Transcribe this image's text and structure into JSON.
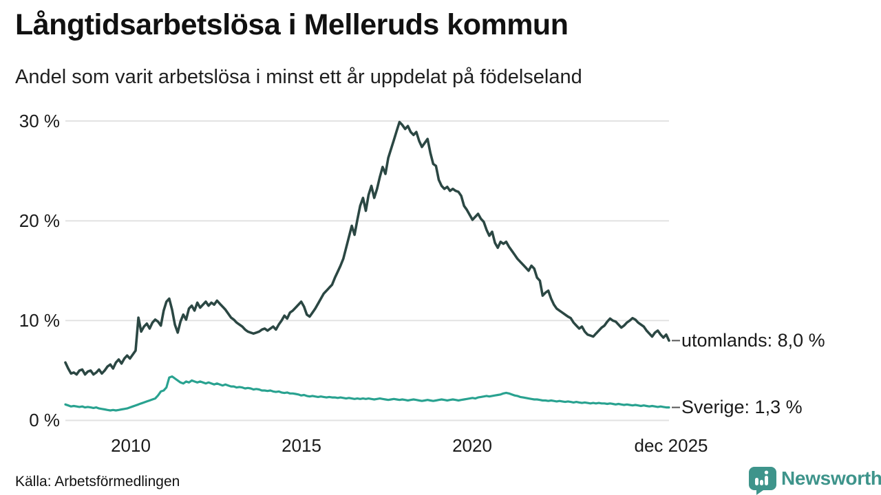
{
  "header": {
    "title": "Långtidsarbetslösa i Melleruds kommun",
    "subtitle": "Andel som varit arbetslösa i minst ett år uppdelat på födelseland"
  },
  "footer": {
    "source": "Källa: Arbetsförmedlingen",
    "brand_name": "Newsworthy",
    "brand_color": "#3e948b",
    "brand_icon": "bar-chart-pin-icon"
  },
  "colors": {
    "gridline": "#e2e2e2",
    "connector": "#555555",
    "text": "#1a1a1a"
  },
  "chart_data": {
    "type": "line",
    "x_unit": "month",
    "x_start": "jan 2008",
    "x_end": "dec 2025",
    "x_tick_labels": [
      "2010",
      "2015",
      "2020",
      "dec 2025"
    ],
    "y_tick_labels": [
      "0 %",
      "10 %",
      "20 %",
      "30 %"
    ],
    "y_ticks": [
      0,
      10,
      20,
      30
    ],
    "ylim": [
      0,
      30
    ],
    "grid": "horizontal",
    "legend_position": "right-end-labels",
    "series": [
      {
        "name": "utomlands",
        "label": "utomlands: 8,0 %",
        "last_value": "8,0 %",
        "color": "#2b4743",
        "stroke_width": 3.6,
        "values": [
          5.8,
          5.2,
          4.7,
          4.8,
          4.6,
          5.0,
          5.1,
          4.6,
          4.9,
          5.0,
          4.6,
          4.8,
          5.1,
          4.7,
          5.0,
          5.4,
          5.6,
          5.2,
          5.8,
          6.1,
          5.7,
          6.2,
          6.5,
          6.2,
          6.6,
          7.0,
          10.3,
          8.9,
          9.4,
          9.7,
          9.2,
          9.8,
          10.1,
          9.9,
          9.5,
          11.0,
          11.9,
          12.2,
          11.1,
          9.6,
          8.8,
          9.9,
          10.6,
          10.1,
          11.2,
          11.5,
          11.0,
          11.8,
          11.3,
          11.6,
          11.9,
          11.5,
          11.8,
          11.6,
          12.0,
          11.7,
          11.4,
          11.1,
          10.7,
          10.3,
          10.1,
          9.8,
          9.6,
          9.4,
          9.1,
          8.9,
          8.8,
          8.7,
          8.8,
          8.9,
          9.1,
          9.2,
          9.0,
          9.2,
          9.4,
          9.1,
          9.6,
          10.0,
          10.5,
          10.2,
          10.8,
          11.0,
          11.3,
          11.6,
          11.9,
          11.4,
          10.6,
          10.4,
          10.8,
          11.2,
          11.7,
          12.2,
          12.7,
          13.0,
          13.3,
          13.6,
          14.3,
          14.9,
          15.5,
          16.2,
          17.3,
          18.4,
          19.5,
          18.6,
          20.1,
          21.5,
          22.3,
          21.0,
          22.6,
          23.5,
          22.3,
          23.2,
          24.4,
          25.4,
          24.7,
          26.3,
          27.2,
          28.1,
          29.0,
          29.9,
          29.6,
          29.2,
          29.5,
          28.9,
          28.6,
          28.9,
          28.0,
          27.4,
          27.8,
          28.2,
          26.8,
          25.7,
          25.5,
          24.1,
          23.5,
          23.2,
          23.4,
          23.0,
          23.2,
          23.0,
          22.9,
          22.5,
          21.5,
          21.1,
          20.6,
          20.1,
          20.4,
          20.7,
          20.2,
          19.9,
          19.1,
          18.5,
          18.9,
          17.8,
          17.3,
          17.9,
          17.7,
          17.9,
          17.4,
          17.0,
          16.6,
          16.2,
          15.9,
          15.6,
          15.3,
          15.0,
          15.5,
          15.2,
          14.3,
          14.0,
          12.5,
          12.8,
          13.0,
          12.2,
          11.6,
          11.2,
          11.0,
          10.8,
          10.6,
          10.4,
          10.25,
          9.8,
          9.5,
          9.2,
          9.4,
          8.9,
          8.6,
          8.5,
          8.4,
          8.7,
          9.0,
          9.3,
          9.5,
          9.9,
          10.2,
          10.0,
          9.9,
          9.6,
          9.3,
          9.5,
          9.8,
          10.0,
          10.25,
          10.1,
          9.8,
          9.6,
          9.4,
          9.0,
          8.7,
          8.4,
          8.8,
          9.0,
          8.6,
          8.3,
          8.6,
          8.0
        ]
      },
      {
        "name": "Sverige",
        "label": "Sverige: 1,3 %",
        "last_value": "1,3 %",
        "color": "#29a290",
        "stroke_width": 3.2,
        "values": [
          1.6,
          1.5,
          1.4,
          1.45,
          1.4,
          1.35,
          1.4,
          1.3,
          1.35,
          1.3,
          1.25,
          1.3,
          1.2,
          1.15,
          1.1,
          1.05,
          1.0,
          1.05,
          1.0,
          1.05,
          1.1,
          1.15,
          1.2,
          1.3,
          1.4,
          1.5,
          1.6,
          1.7,
          1.8,
          1.9,
          2.0,
          2.1,
          2.2,
          2.5,
          2.9,
          3.0,
          3.3,
          4.3,
          4.4,
          4.2,
          4.0,
          3.8,
          3.7,
          3.9,
          3.8,
          4.0,
          3.9,
          3.8,
          3.9,
          3.8,
          3.7,
          3.8,
          3.7,
          3.6,
          3.7,
          3.6,
          3.5,
          3.6,
          3.5,
          3.4,
          3.4,
          3.3,
          3.35,
          3.3,
          3.2,
          3.25,
          3.2,
          3.1,
          3.15,
          3.1,
          3.0,
          3.0,
          2.95,
          3.0,
          2.9,
          2.85,
          2.9,
          2.8,
          2.75,
          2.8,
          2.7,
          2.7,
          2.65,
          2.6,
          2.5,
          2.55,
          2.45,
          2.4,
          2.45,
          2.4,
          2.35,
          2.4,
          2.35,
          2.3,
          2.35,
          2.3,
          2.3,
          2.25,
          2.3,
          2.25,
          2.2,
          2.25,
          2.2,
          2.15,
          2.2,
          2.15,
          2.2,
          2.15,
          2.2,
          2.15,
          2.1,
          2.15,
          2.2,
          2.15,
          2.1,
          2.05,
          2.1,
          2.15,
          2.1,
          2.05,
          2.1,
          2.05,
          2.0,
          2.05,
          2.1,
          2.05,
          2.0,
          1.95,
          2.0,
          2.05,
          2.0,
          1.95,
          2.0,
          2.05,
          2.1,
          2.05,
          2.0,
          2.05,
          2.1,
          2.05,
          2.0,
          2.05,
          2.1,
          2.15,
          2.2,
          2.25,
          2.2,
          2.3,
          2.35,
          2.4,
          2.45,
          2.4,
          2.45,
          2.5,
          2.55,
          2.6,
          2.7,
          2.76,
          2.7,
          2.6,
          2.5,
          2.45,
          2.35,
          2.3,
          2.25,
          2.2,
          2.15,
          2.1,
          2.1,
          2.05,
          2.0,
          2.0,
          1.95,
          2.0,
          1.95,
          1.9,
          1.95,
          1.9,
          1.85,
          1.9,
          1.85,
          1.8,
          1.85,
          1.8,
          1.75,
          1.8,
          1.75,
          1.7,
          1.75,
          1.7,
          1.75,
          1.7,
          1.7,
          1.65,
          1.7,
          1.65,
          1.6,
          1.65,
          1.6,
          1.55,
          1.6,
          1.55,
          1.5,
          1.55,
          1.5,
          1.45,
          1.5,
          1.45,
          1.4,
          1.45,
          1.4,
          1.35,
          1.4,
          1.35,
          1.3,
          1.3
        ]
      }
    ]
  }
}
